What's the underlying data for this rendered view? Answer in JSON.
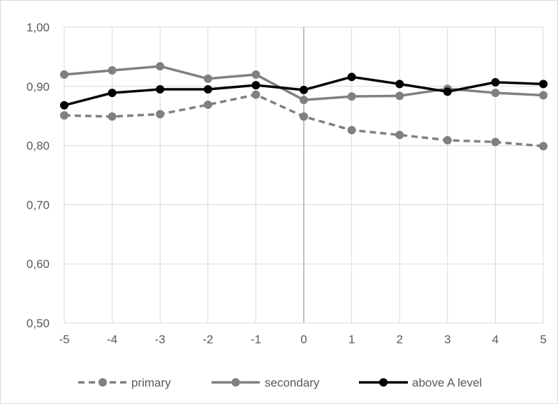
{
  "chart_data": {
    "type": "line",
    "title": "",
    "xlabel": "",
    "ylabel": "",
    "x": [
      -5,
      -4,
      -3,
      -2,
      -1,
      0,
      1,
      2,
      3,
      4,
      5
    ],
    "x_tick_labels": [
      "-5",
      "-4",
      "-3",
      "-2",
      "-1",
      "0",
      "1",
      "2",
      "3",
      "4",
      "5"
    ],
    "ylim": [
      0.5,
      1.0
    ],
    "y_ticks": [
      0.5,
      0.6,
      0.7,
      0.8,
      0.9,
      1.0
    ],
    "y_tick_labels": [
      "0,50",
      "0,60",
      "0,70",
      "0,80",
      "0,90",
      "1,00"
    ],
    "grid": "vertical and horizontal",
    "vertical_reference_line_x": 0,
    "legend_position": "bottom",
    "series": [
      {
        "name": "primary",
        "color": "#808080",
        "dash": "dashed",
        "marker": "circle",
        "values": [
          0.851,
          0.849,
          0.853,
          0.869,
          0.886,
          0.849,
          0.826,
          0.818,
          0.809,
          0.806,
          0.799
        ]
      },
      {
        "name": "secondary",
        "color": "#808080",
        "dash": "solid",
        "marker": "circle",
        "values": [
          0.92,
          0.927,
          0.934,
          0.913,
          0.92,
          0.877,
          0.883,
          0.884,
          0.896,
          0.889,
          0.885
        ]
      },
      {
        "name": "above A level",
        "color": "#000000",
        "dash": "solid",
        "marker": "circle",
        "values": [
          0.868,
          0.889,
          0.895,
          0.895,
          0.902,
          0.894,
          0.916,
          0.904,
          0.891,
          0.907,
          0.904
        ]
      }
    ]
  }
}
